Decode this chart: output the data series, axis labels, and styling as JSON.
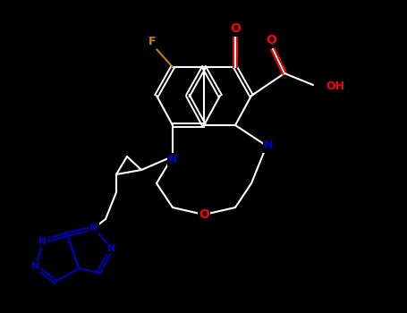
{
  "bg_color": "#000000",
  "bond_color": "#ffffff",
  "atom_colors": {
    "O": "#ff0000",
    "N": "#0000cc",
    "F": "#cc8800",
    "C": "#ffffff"
  },
  "figsize": [
    4.55,
    3.5
  ],
  "dpi": 100
}
